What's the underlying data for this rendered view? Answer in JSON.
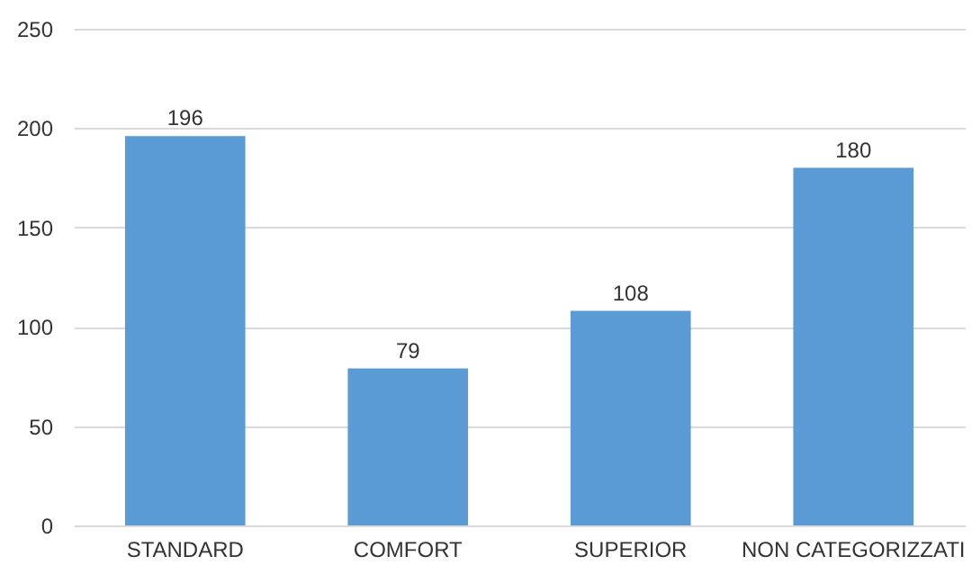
{
  "chart_data": {
    "type": "bar",
    "categories": [
      "STANDARD",
      "COMFORT",
      "SUPERIOR",
      "NON CATEGORIZZATI"
    ],
    "values": [
      196,
      79,
      108,
      180
    ],
    "color": "#5b9bd5",
    "ylim": [
      0,
      250
    ],
    "yticks": [
      0,
      50,
      100,
      150,
      200,
      250
    ],
    "grid": "y",
    "data_labels": true
  }
}
